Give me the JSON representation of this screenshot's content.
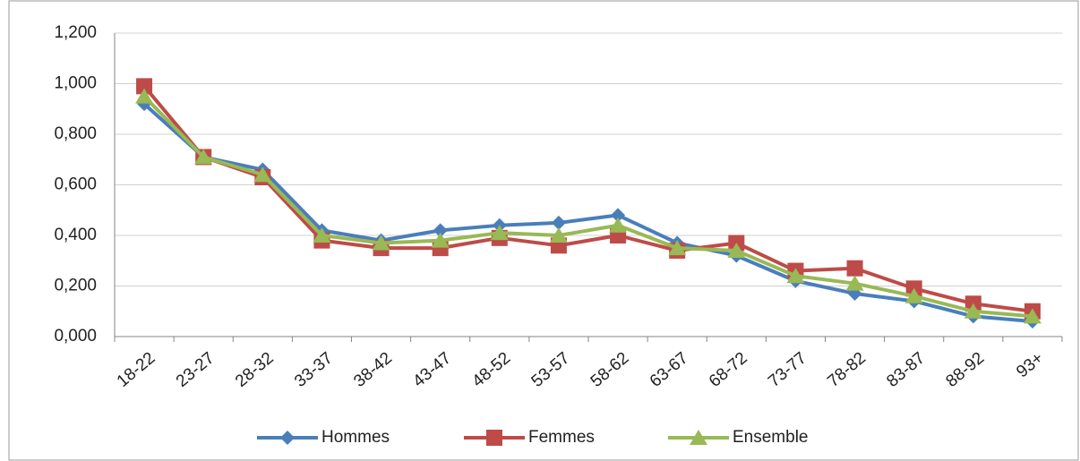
{
  "chart_data": {
    "type": "line",
    "categories": [
      "18-22",
      "23-27",
      "28-32",
      "33-37",
      "38-42",
      "43-47",
      "48-52",
      "53-57",
      "58-62",
      "63-67",
      "68-72",
      "73-77",
      "78-82",
      "83-87",
      "88-92",
      "93+"
    ],
    "series": [
      {
        "name": "Hommes",
        "color": "#4a7ebb",
        "marker": "diamond",
        "values": [
          0.92,
          0.71,
          0.66,
          0.42,
          0.38,
          0.42,
          0.44,
          0.45,
          0.48,
          0.37,
          0.32,
          0.22,
          0.17,
          0.14,
          0.08,
          0.06
        ]
      },
      {
        "name": "Femmes",
        "color": "#be4b48",
        "marker": "square",
        "values": [
          0.99,
          0.71,
          0.63,
          0.38,
          0.35,
          0.35,
          0.39,
          0.36,
          0.4,
          0.34,
          0.37,
          0.26,
          0.27,
          0.19,
          0.13,
          0.1
        ]
      },
      {
        "name": "Ensemble",
        "color": "#98b954",
        "marker": "triangle",
        "values": [
          0.95,
          0.71,
          0.64,
          0.4,
          0.37,
          0.38,
          0.41,
          0.4,
          0.44,
          0.35,
          0.34,
          0.24,
          0.21,
          0.16,
          0.1,
          0.08
        ]
      }
    ],
    "ylim": [
      0,
      1.2
    ],
    "yticks": [
      {
        "value": 0,
        "label": "0,000"
      },
      {
        "value": 0.2,
        "label": "0,200"
      },
      {
        "value": 0.4,
        "label": "0,400"
      },
      {
        "value": 0.6,
        "label": "0,600"
      },
      {
        "value": 0.8,
        "label": "0,800"
      },
      {
        "value": 1.0,
        "label": "1,000"
      },
      {
        "value": 1.2,
        "label": "1,200"
      }
    ],
    "grid": true,
    "legend": "bottom"
  }
}
